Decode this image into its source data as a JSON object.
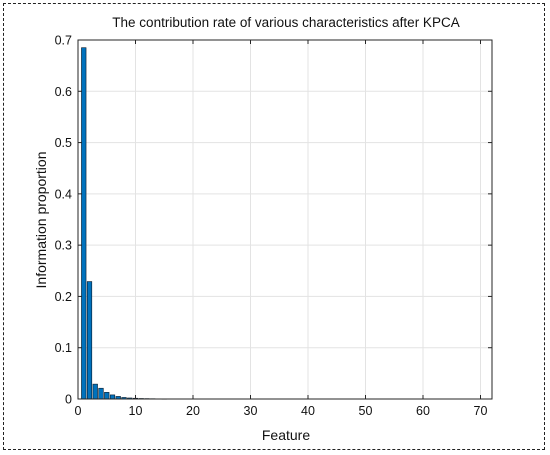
{
  "chart_data": {
    "type": "bar",
    "title": "The contribution rate of various characteristics after KPCA",
    "xlabel": "Feature",
    "ylabel": "Information proportion",
    "xlim": [
      0,
      72
    ],
    "ylim": [
      0,
      0.7
    ],
    "xticks": [
      0,
      10,
      20,
      30,
      40,
      50,
      60,
      70
    ],
    "yticks": [
      0,
      0.1,
      0.2,
      0.3,
      0.4,
      0.5,
      0.6,
      0.7
    ],
    "xtick_labels": [
      "0",
      "10",
      "20",
      "30",
      "40",
      "50",
      "60",
      "70"
    ],
    "ytick_labels": [
      "0",
      "0.1",
      "0.2",
      "0.3",
      "0.4",
      "0.5",
      "0.6",
      "0.7"
    ],
    "grid": true,
    "bar_color": "#0072BD",
    "x": [
      1,
      2,
      3,
      4,
      5,
      6,
      7,
      8,
      9,
      10,
      11,
      12,
      13,
      14,
      15
    ],
    "values": [
      0.685,
      0.229,
      0.029,
      0.021,
      0.013,
      0.008,
      0.005,
      0.003,
      0.002,
      0.0015,
      0.001,
      0.0008,
      0.0006,
      0.0004,
      0.0003
    ]
  }
}
